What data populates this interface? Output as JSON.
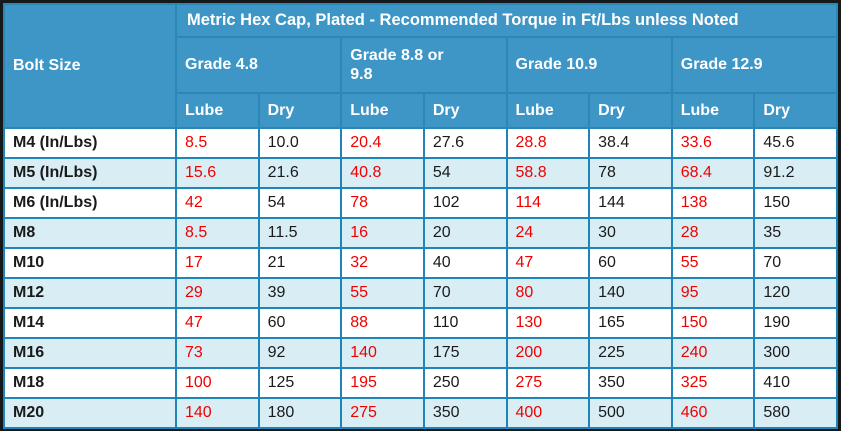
{
  "chart_data": {
    "type": "table",
    "title": "Metric Hex Cap, Plated - Recommended Torque in Ft/Lbs unless Noted",
    "corner_header": "Bolt Size",
    "group_headers": [
      "Grade 4.8",
      "Grade 8.8 or 9.8",
      "Grade 10.9",
      "Grade 12.9"
    ],
    "sub_headers": [
      "Lube",
      "Dry",
      "Lube",
      "Dry",
      "Lube",
      "Dry",
      "Lube",
      "Dry"
    ],
    "rows": [
      {
        "bolt_size": "M4 (In/Lbs)",
        "values": [
          "8.5",
          "10.0",
          "20.4",
          "27.6",
          "28.8",
          "38.4",
          "33.6",
          "45.6"
        ]
      },
      {
        "bolt_size": "M5 (In/Lbs)",
        "values": [
          "15.6",
          "21.6",
          "40.8",
          "54",
          "58.8",
          "78",
          "68.4",
          "91.2"
        ]
      },
      {
        "bolt_size": "M6 (In/Lbs)",
        "values": [
          "42",
          "54",
          "78",
          "102",
          "114",
          "144",
          "138",
          "150"
        ]
      },
      {
        "bolt_size": "M8",
        "values": [
          "8.5",
          "11.5",
          "16",
          "20",
          "24",
          "30",
          "28",
          "35"
        ]
      },
      {
        "bolt_size": "M10",
        "values": [
          "17",
          "21",
          "32",
          "40",
          "47",
          "60",
          "55",
          "70"
        ]
      },
      {
        "bolt_size": "M12",
        "values": [
          "29",
          "39",
          "55",
          "70",
          "80",
          "140",
          "95",
          "120"
        ]
      },
      {
        "bolt_size": "M14",
        "values": [
          "47",
          "60",
          "88",
          "110",
          "130",
          "165",
          "150",
          "190"
        ]
      },
      {
        "bolt_size": "M16",
        "values": [
          "73",
          "92",
          "140",
          "175",
          "200",
          "225",
          "240",
          "300"
        ]
      },
      {
        "bolt_size": "M18",
        "values": [
          "100",
          "125",
          "195",
          "250",
          "275",
          "350",
          "325",
          "410"
        ]
      },
      {
        "bolt_size": "M20",
        "values": [
          "140",
          "180",
          "275",
          "350",
          "400",
          "500",
          "460",
          "580"
        ]
      }
    ]
  },
  "colors": {
    "header_bg": "#3e96c6",
    "grid_border": "#1f85b8",
    "alt_row_bg": "#d9edf5",
    "lube_text": "#f10000",
    "dry_text": "#1a1a1a",
    "header_text": "#ffffff",
    "outer_frame": "#15191c"
  }
}
